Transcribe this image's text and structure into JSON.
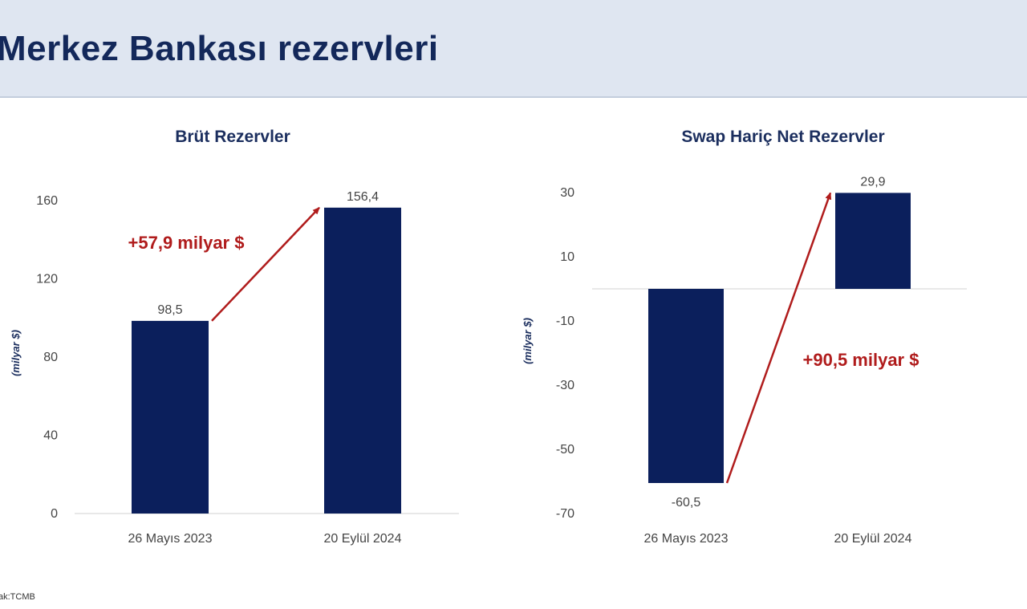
{
  "page": {
    "title": "Merkez Bankası rezervleri",
    "source": "ak:TCMB"
  },
  "colors": {
    "header_bg": "#dfe6f1",
    "title": "#13285a",
    "bar": "#0b1f5c",
    "arrow": "#b01c1c",
    "axis_text": "#444444"
  },
  "chart_data": [
    {
      "type": "bar",
      "title": "Brüt Rezervler",
      "ylabel": "(milyar $)",
      "xlabel": "",
      "categories": [
        "26 Mayıs 2023",
        "20 Eylül 2024"
      ],
      "values": [
        98.5,
        156.4
      ],
      "value_labels": [
        "98,5",
        "156,4"
      ],
      "ylim": [
        0,
        160
      ],
      "yticks": [
        0,
        40,
        80,
        120,
        160
      ],
      "ytick_labels": [
        "0",
        "40",
        "80",
        "120",
        "160"
      ],
      "grid": false,
      "annotation": "+57,9 milyar $"
    },
    {
      "type": "bar",
      "title": "Swap Hariç Net Rezervler",
      "ylabel": "(milyar $)",
      "xlabel": "",
      "categories": [
        "26 Mayıs 2023",
        "20 Eylül 2024"
      ],
      "values": [
        -60.5,
        29.9
      ],
      "value_labels": [
        "-60,5",
        "29,9"
      ],
      "ylim": [
        -70,
        30
      ],
      "yticks": [
        30,
        10,
        -10,
        -30,
        -50,
        -70
      ],
      "ytick_labels": [
        "30",
        "10",
        "-10",
        "-30",
        "-50",
        "-70"
      ],
      "grid": false,
      "annotation": "+90,5 milyar $"
    }
  ]
}
